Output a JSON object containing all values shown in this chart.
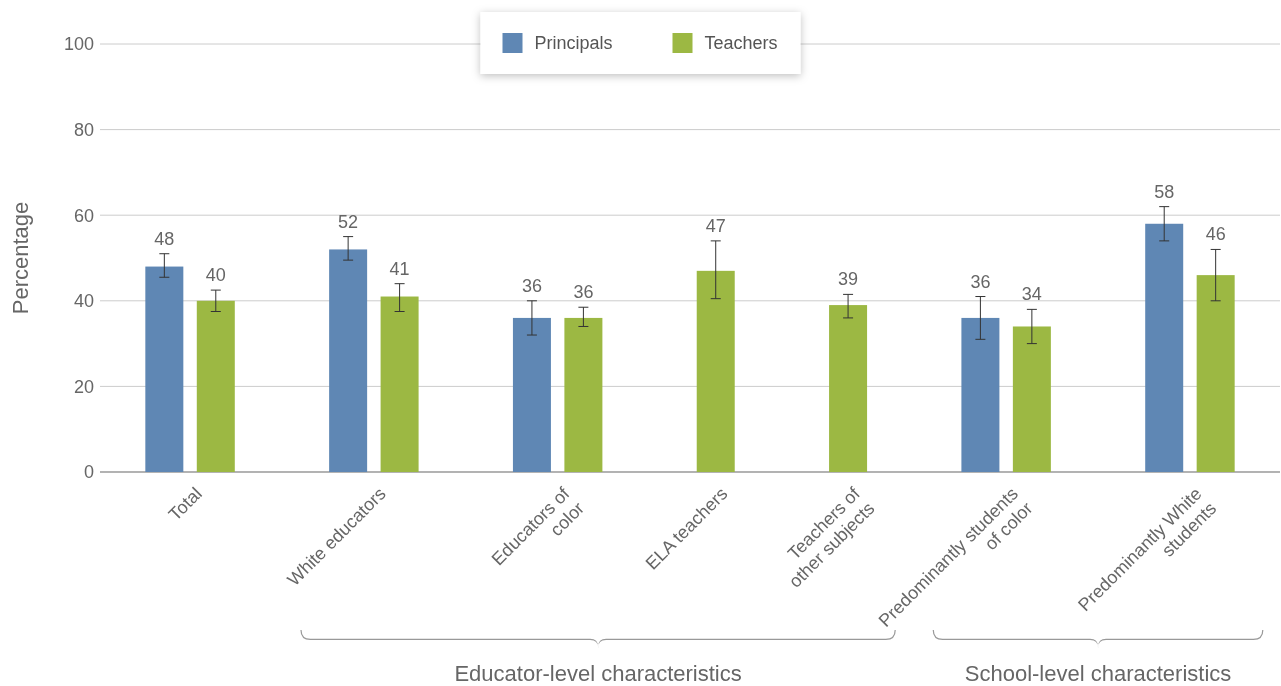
{
  "chart_data": {
    "type": "bar",
    "ylabel": "Percentage",
    "categories": [
      "Total",
      "White educators",
      "Educators of color",
      "ELA teachers",
      "Teachers of other subjects",
      "Predominantly students of color",
      "Predominantly White students"
    ],
    "series": [
      {
        "name": "Principals",
        "color": "#5f87b4",
        "values": [
          48,
          52,
          36,
          null,
          null,
          36,
          58
        ],
        "errors": [
          [
            45.5,
            51
          ],
          [
            49.5,
            55
          ],
          [
            32,
            40
          ],
          null,
          null,
          [
            31,
            41
          ],
          [
            54,
            62
          ]
        ]
      },
      {
        "name": "Teachers",
        "color": "#9cb843",
        "values": [
          40,
          41,
          36,
          47,
          39,
          34,
          46
        ],
        "errors": [
          [
            37.5,
            42.5
          ],
          [
            37.5,
            44
          ],
          [
            34,
            38.5
          ],
          [
            40.5,
            54
          ],
          [
            36,
            41.5
          ],
          [
            30,
            38
          ],
          [
            40,
            52
          ]
        ]
      }
    ],
    "ylim": [
      0,
      100
    ],
    "yticks": [
      0,
      20,
      40,
      60,
      80,
      100
    ],
    "grid": "y",
    "legend": "top",
    "data_labels": true,
    "annotations": [
      "Educator-level characteristics",
      "School-level characteristics"
    ]
  }
}
